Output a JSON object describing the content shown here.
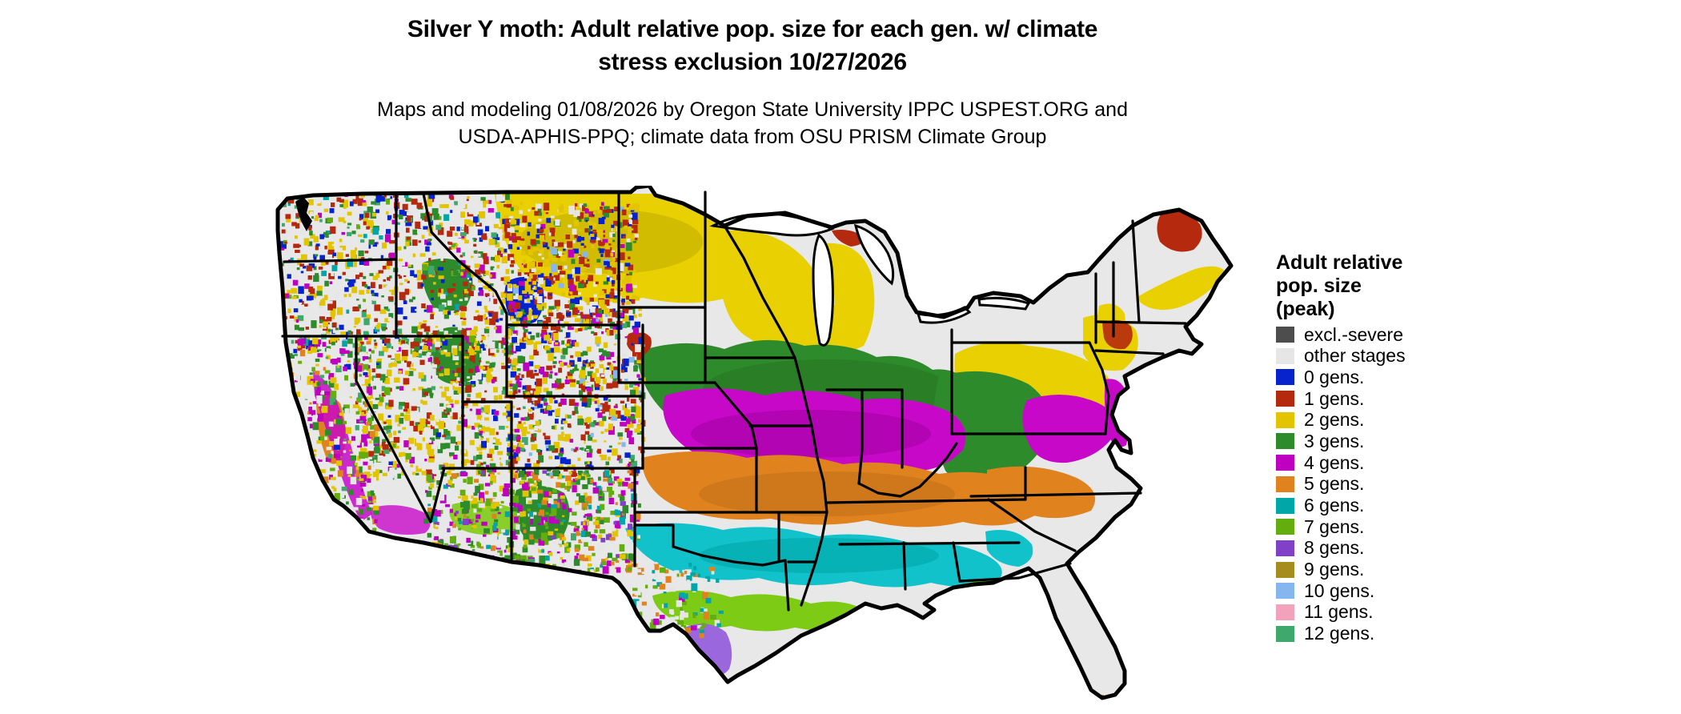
{
  "title": {
    "line1": "Silver Y moth: Adult relative pop. size for each gen. w/ climate",
    "line2": "stress exclusion 10/27/2026"
  },
  "subtitle": {
    "line1": "Maps and modeling 01/08/2026 by Oregon State University IPPC USPEST.ORG and",
    "line2": "USDA-APHIS-PPQ; climate data from OSU PRISM Climate Group"
  },
  "legend": {
    "title_lines": [
      "Adult relative",
      "pop. size",
      "(peak)"
    ],
    "items": [
      {
        "label": "excl.-severe",
        "color": "#4d4d4d"
      },
      {
        "label": "other stages",
        "color": "#e6e6e6"
      },
      {
        "label": "0 gens.",
        "color": "#0623cd"
      },
      {
        "label": "1 gens.",
        "color": "#b5290f"
      },
      {
        "label": "2 gens.",
        "color": "#e3c400"
      },
      {
        "label": "3 gens.",
        "color": "#2e8b2b"
      },
      {
        "label": "4 gens.",
        "color": "#c000c0"
      },
      {
        "label": "5 gens.",
        "color": "#e0821e"
      },
      {
        "label": "6 gens.",
        "color": "#00a6a8"
      },
      {
        "label": "7 gens.",
        "color": "#64ad0f"
      },
      {
        "label": "8 gens.",
        "color": "#8040c8"
      },
      {
        "label": "9 gens.",
        "color": "#a68b1e"
      },
      {
        "label": "10 gens.",
        "color": "#85b7ee"
      },
      {
        "label": "11 gens.",
        "color": "#f2a2ba"
      },
      {
        "label": "12 gens.",
        "color": "#3fa96d"
      }
    ]
  },
  "map": {
    "background_color": "#e8e8e8",
    "water_color": "#ffffff",
    "border_color": "#000000",
    "bright": {
      "2 gens.": "#e8d002",
      "4 gens.": "#c808c8",
      "6 gens.": "#12c2ca",
      "7 gens.": "#7ecb16",
      "8 gens.": "#9a68dc"
    }
  }
}
